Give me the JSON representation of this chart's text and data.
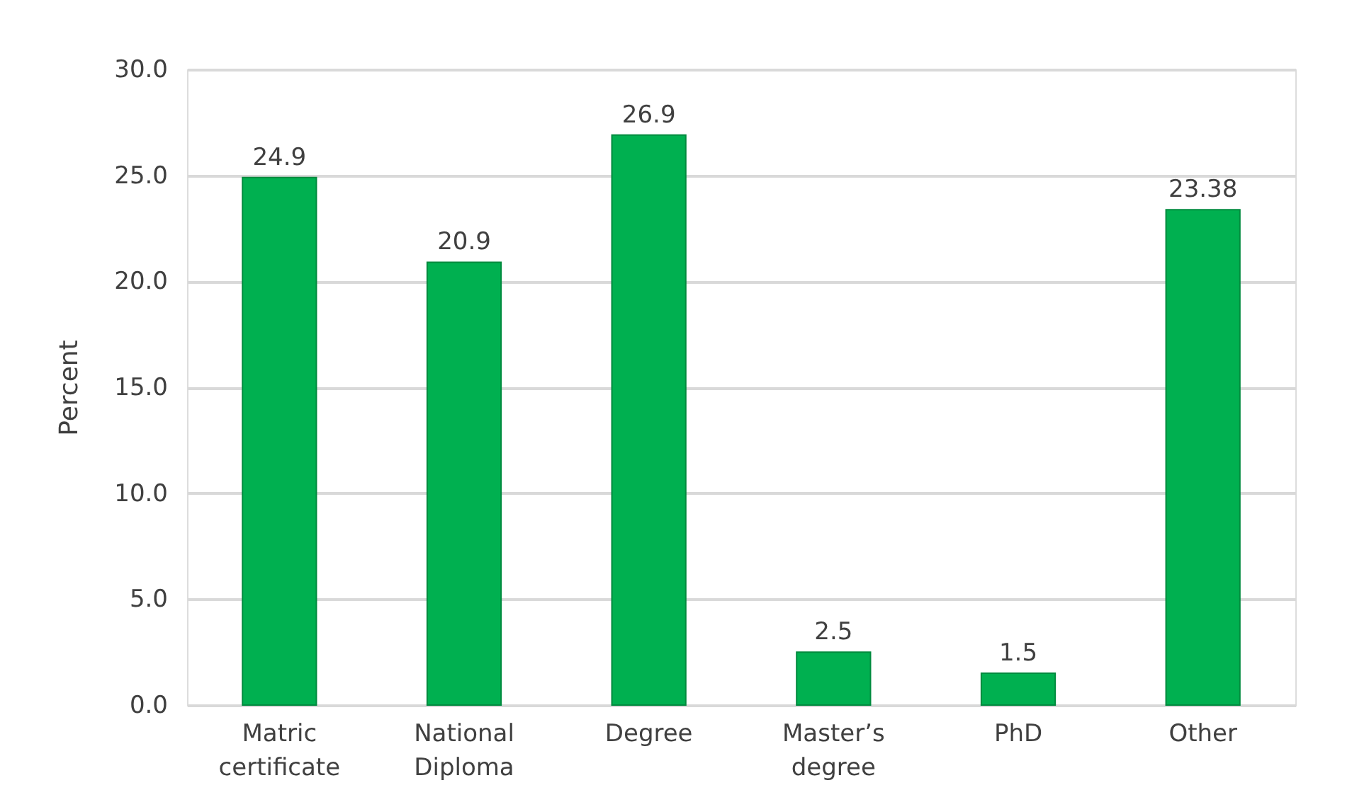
{
  "chart_data": {
    "type": "bar",
    "ylabel": "Percent",
    "categories": [
      "Matric certificate",
      "National Diploma",
      "Degree",
      "Master’s degree",
      "PhD",
      "Other"
    ],
    "values": [
      24.9,
      20.9,
      26.9,
      2.5,
      1.5,
      23.38
    ],
    "color": "#00b050",
    "ylim": [
      0,
      30
    ],
    "yticks": [
      {
        "value": 0,
        "label": "0.0"
      },
      {
        "value": 5,
        "label": "5.0"
      },
      {
        "value": 10,
        "label": "10.0"
      },
      {
        "value": 15,
        "label": "15.0"
      },
      {
        "value": 20,
        "label": "20.0"
      },
      {
        "value": 25,
        "label": "25.0"
      },
      {
        "value": 30,
        "label": "30.0"
      }
    ],
    "grid": "y",
    "data_labels": true
  }
}
